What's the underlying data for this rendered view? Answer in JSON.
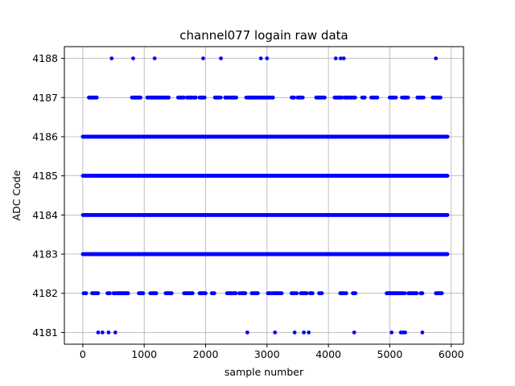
{
  "chart_data": {
    "type": "scatter",
    "title": "channel077 logain raw data",
    "xlabel": "sample number",
    "ylabel": "ADC Code",
    "xlim": [
      -300,
      6200
    ],
    "ylim": [
      4180.7,
      4188.3
    ],
    "xticks": [
      0,
      1000,
      2000,
      3000,
      4000,
      5000,
      6000
    ],
    "yticks": [
      4181,
      4182,
      4183,
      4184,
      4185,
      4186,
      4187,
      4188
    ],
    "grid": true,
    "marker_color": "#0000ff",
    "n_samples": 5940,
    "series": [
      {
        "values_by_level": [
          {
            "y": 4188,
            "x": [
              470,
              820,
              1170,
              1960,
              2250,
              2900,
              3000,
              4120,
              4200,
              4250,
              5750
            ]
          },
          {
            "y": 4187,
            "x_ranges": [
              [
                100,
                250
              ],
              [
                800,
                950
              ],
              [
                1050,
                1400
              ],
              [
                1550,
                1650
              ],
              [
                1700,
                1850
              ],
              [
                1900,
                2000
              ],
              [
                2150,
                2500
              ],
              [
                2650,
                3100
              ],
              [
                3400,
                3450
              ],
              [
                3500,
                3600
              ],
              [
                3800,
                3950
              ],
              [
                4100,
                4450
              ],
              [
                4550,
                4600
              ],
              [
                4700,
                4800
              ],
              [
                5000,
                5100
              ],
              [
                5200,
                5300
              ],
              [
                5450,
                5550
              ],
              [
                5700,
                5850
              ]
            ]
          },
          {
            "y": 4186,
            "x_ranges": [
              [
                0,
                5940
              ]
            ]
          },
          {
            "y": 4185,
            "x_ranges": [
              [
                0,
                5940
              ]
            ]
          },
          {
            "y": 4184,
            "x_ranges": [
              [
                0,
                5940
              ]
            ]
          },
          {
            "y": 4183,
            "x_ranges": [
              [
                0,
                5940
              ]
            ]
          },
          {
            "y": 4182,
            "x_ranges": [
              [
                0,
                60
              ],
              [
                150,
                250
              ],
              [
                400,
                450
              ],
              [
                500,
                750
              ],
              [
                900,
                1000
              ],
              [
                1100,
                1200
              ],
              [
                1350,
                1450
              ],
              [
                1650,
                1800
              ],
              [
                1900,
                2000
              ],
              [
                2100,
                2150
              ],
              [
                2350,
                2500
              ],
              [
                2550,
                2650
              ],
              [
                2750,
                2850
              ],
              [
                3000,
                3250
              ],
              [
                3400,
                3500
              ],
              [
                3550,
                3650
              ],
              [
                3700,
                3750
              ],
              [
                3850,
                3900
              ],
              [
                4150,
                4300
              ],
              [
                4400,
                4450
              ],
              [
                4950,
                5250
              ],
              [
                5300,
                5450
              ],
              [
                5500,
                5550
              ],
              [
                5750,
                5850
              ]
            ]
          },
          {
            "y": 4181,
            "x": [
              250,
              320,
              420,
              530,
              2680,
              3130,
              3450,
              3600,
              3680,
              4420,
              5030,
              5180,
              5220,
              5250,
              5530
            ]
          }
        ]
      }
    ]
  }
}
